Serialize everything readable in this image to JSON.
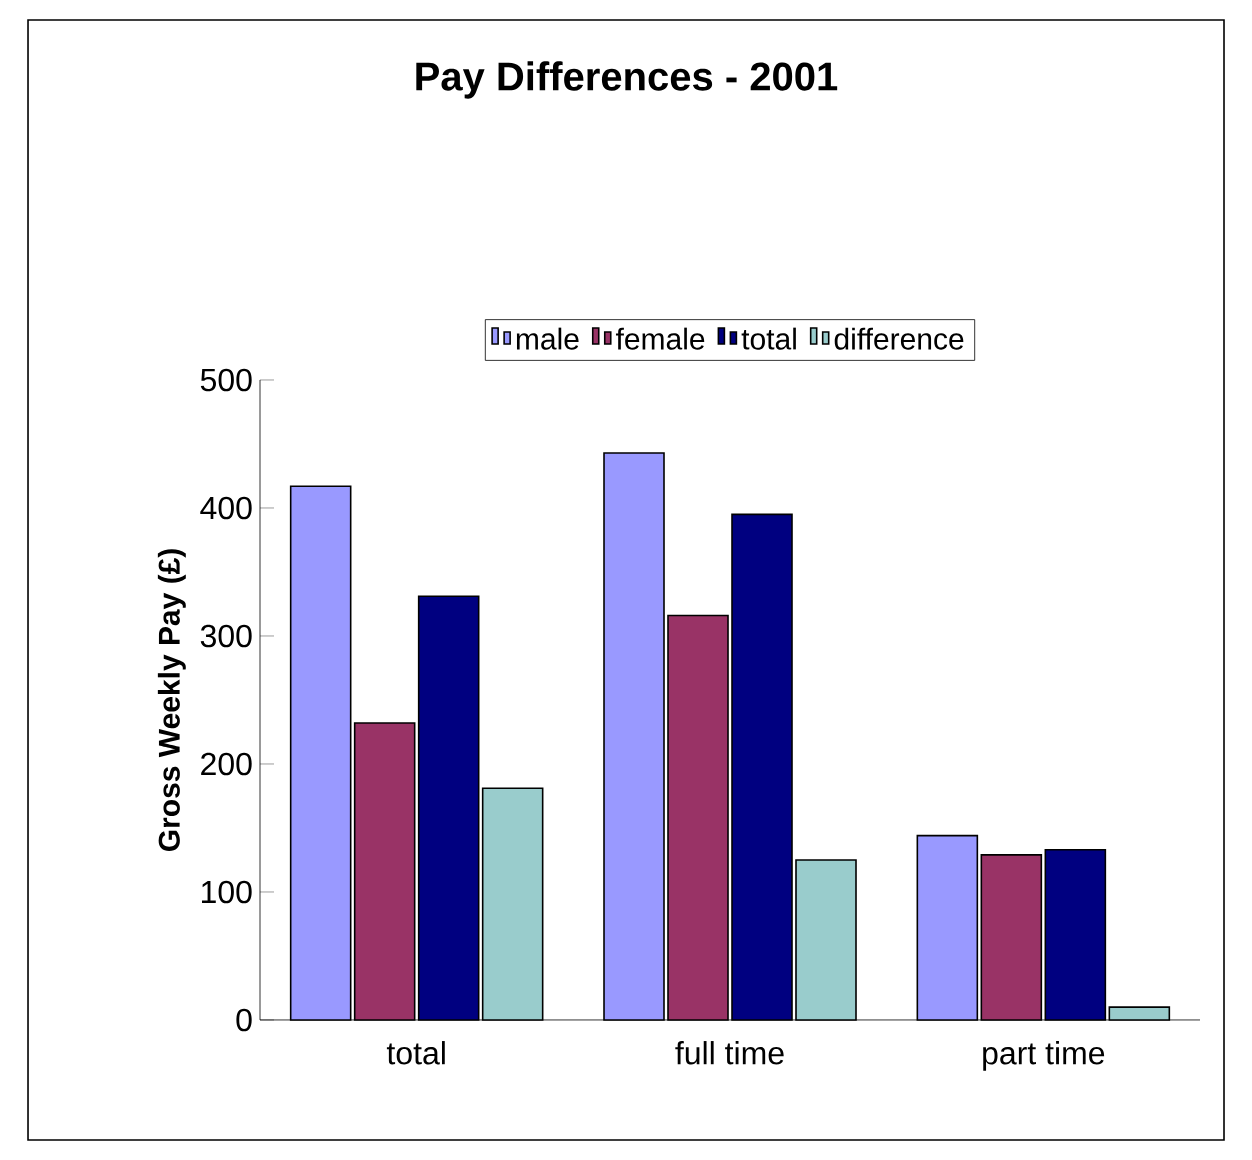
{
  "chart_data": {
    "type": "bar",
    "title": "Pay Differences - 2001",
    "ylabel": "Gross Weekly Pay (£)",
    "categories": [
      "total",
      "full time",
      "part time"
    ],
    "series": [
      {
        "name": "male",
        "color": "#9999ff",
        "values": [
          417,
          443,
          144
        ]
      },
      {
        "name": "female",
        "color": "#993366",
        "values": [
          232,
          316,
          129
        ]
      },
      {
        "name": "total",
        "color": "#000080",
        "values": [
          331,
          395,
          133
        ]
      },
      {
        "name": "difference",
        "color": "#99cccc",
        "values": [
          181,
          125,
          10
        ]
      }
    ],
    "ylim": [
      0,
      500
    ],
    "yticks": [
      0,
      100,
      200,
      300,
      400,
      500
    ],
    "grid": false,
    "legend": "top"
  }
}
